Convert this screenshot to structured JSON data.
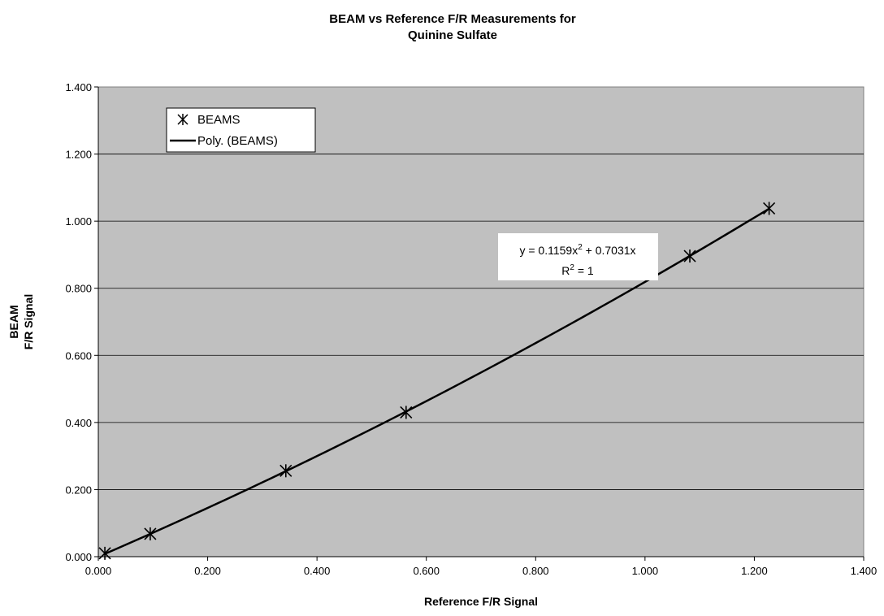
{
  "chart_data": {
    "type": "scatter",
    "title_line1": "BEAM vs Reference F/R Measurements for",
    "title_line2": "Quinine Sulfate",
    "xlabel": "Reference F/R Signal",
    "ylabel_line1": "BEAM",
    "ylabel_line2": "F/R Signal",
    "xlim": [
      0,
      1.4
    ],
    "ylim": [
      0,
      1.4
    ],
    "xticks": [
      "0.000",
      "0.200",
      "0.400",
      "0.600",
      "0.800",
      "1.000",
      "1.200",
      "1.400"
    ],
    "yticks": [
      "0.000",
      "0.200",
      "0.400",
      "0.600",
      "0.800",
      "1.000",
      "1.200",
      "1.400"
    ],
    "grid": "horizontal",
    "plot_background": "#c0c0c0",
    "series": [
      {
        "name": "BEAMS",
        "marker": "asterisk",
        "x": [
          0.012,
          0.095,
          0.343,
          0.563,
          1.082,
          1.227
        ],
        "y": [
          0.01,
          0.068,
          0.256,
          0.43,
          0.896,
          1.038
        ]
      }
    ],
    "trendline": {
      "name": "Poly. (BEAMS)",
      "a2": 0.1159,
      "a1": 0.7031,
      "x_range": [
        0.012,
        1.227
      ],
      "equation_prefix": "y = 0.1159x",
      "equation_suffix": " + 0.7031x",
      "r2_prefix": "R",
      "r2_suffix": " = 1",
      "superscript": "2"
    },
    "legend_position": "top-left"
  }
}
